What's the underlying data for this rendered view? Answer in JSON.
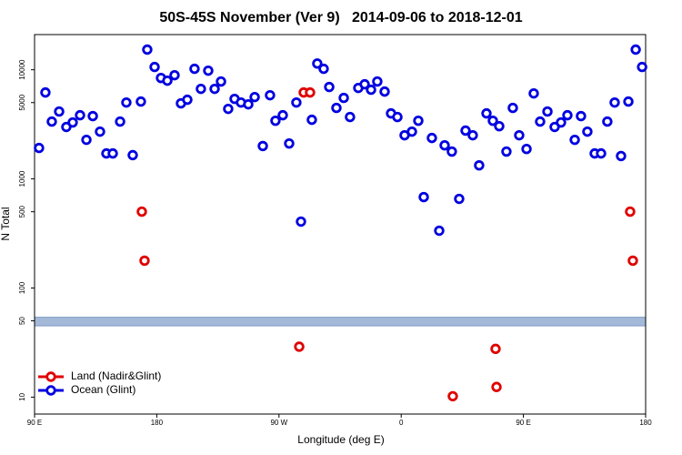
{
  "chart_data": {
    "type": "scatter",
    "title": "50S-45S November (Ver 9)   2014-09-06 to 2018-12-01",
    "x_label": "Longitude (deg E)",
    "y_label": "N Total",
    "log_y": true,
    "xlim": [
      90,
      540
    ],
    "xticks": [
      {
        "value": 90,
        "label": "90 E"
      },
      180,
      {
        "value": 270,
        "label": "90 W"
      },
      {
        "value": 360,
        "label": "0"
      },
      {
        "value": 450,
        "label": "90 E"
      },
      {
        "value": 540,
        "label": "180"
      }
    ],
    "ylim": [
      7,
      21000
    ],
    "yticks": [
      10,
      50,
      100,
      500,
      1000,
      5000,
      10000
    ],
    "band": {
      "from": 45,
      "to": 54,
      "color": "#a4b9d8"
    },
    "legend": "lower left",
    "series": [
      {
        "name": "Land (Nadir&Glint)",
        "color": "#e00000",
        "x": [
          169.0,
          171.0,
          288.2,
          292.9,
          284.9,
          398.0,
          429.5,
          430.2,
          528.6,
          530.6
        ],
        "values": [
          501,
          178,
          6190,
          6190,
          29,
          10.2,
          27.7,
          12.4,
          501,
          178
        ]
      },
      {
        "name": "Ocean (Glint)",
        "color": "#0000e0",
        "x": [
          93.3,
          98.0,
          102.7,
          108.1,
          113.4,
          118.1,
          123.5,
          128.2,
          132.9,
          138.2,
          142.9,
          147.6,
          153.0,
          157.6,
          162.3,
          168.3,
          173.0,
          178.4,
          183.1,
          187.8,
          193.1,
          197.8,
          202.5,
          207.8,
          212.5,
          217.9,
          222.6,
          227.3,
          232.6,
          237.3,
          242.0,
          247.4,
          252.1,
          258.1,
          263.4,
          267.4,
          272.8,
          277.5,
          282.8,
          286.2,
          294.2,
          298.2,
          302.9,
          307.0,
          312.3,
          317.7,
          322.3,
          328.4,
          333.1,
          337.8,
          342.4,
          347.8,
          352.5,
          357.2,
          362.5,
          367.9,
          372.6,
          376.6,
          382.6,
          388.0,
          392.0,
          397.3,
          402.7,
          407.4,
          412.7,
          417.4,
          422.8,
          427.5,
          432.2,
          437.5,
          442.2,
          446.9,
          452.3,
          457.6,
          462.3,
          467.7,
          473.0,
          477.7,
          482.4,
          487.8,
          492.4,
          497.1,
          502.5,
          507.2,
          511.8,
          517.2,
          521.9,
          527.3,
          532.7,
          537.4
        ],
        "values": [
          1920,
          6190,
          3350,
          4140,
          2990,
          3290,
          3830,
          2280,
          3760,
          2710,
          1710,
          1710,
          3350,
          5010,
          1650,
          5110,
          15300,
          10600,
          8410,
          7940,
          8910,
          4920,
          5310,
          10200,
          6680,
          9810,
          6680,
          7800,
          4380,
          5410,
          5010,
          4820,
          5620,
          2000,
          5840,
          3410,
          3830,
          2110,
          5010,
          406,
          3480,
          11400,
          10200,
          6950,
          4470,
          5520,
          3690,
          6810,
          7360,
          6560,
          7800,
          6310,
          3980,
          3690,
          2510,
          2710,
          3410,
          681,
          2370,
          335,
          2030,
          1780,
          656,
          2770,
          2510,
          1330,
          3980,
          3410,
          3040,
          1780,
          4470,
          2510,
          1880,
          6070,
          3350,
          4140,
          2990,
          3290,
          3830,
          2280,
          3760,
          2710,
          1710,
          1710,
          3350,
          5010,
          1620,
          5110,
          15300,
          10600
        ]
      }
    ]
  }
}
